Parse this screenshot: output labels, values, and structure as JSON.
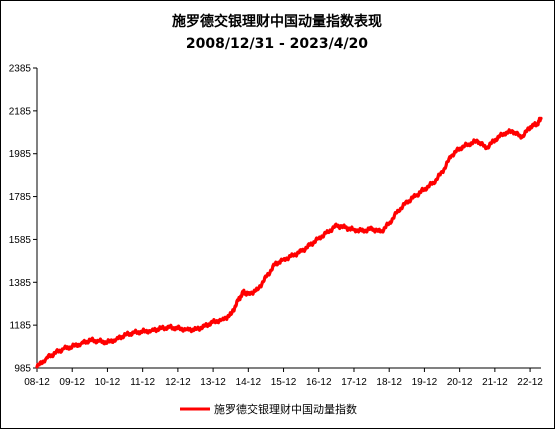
{
  "chart_data": {
    "type": "line",
    "title": "施罗德交银理财中国动量指数表现",
    "subtitle": "2008/12/31  -  2023/4/20",
    "xlabel": "",
    "ylabel": "",
    "x_tick_labels": [
      "08-12",
      "09-12",
      "10-12",
      "11-12",
      "12-12",
      "13-12",
      "14-12",
      "15-12",
      "16-12",
      "17-12",
      "18-12",
      "19-12",
      "20-12",
      "21-12",
      "22-12"
    ],
    "y_tick_labels": [
      "985",
      "1185",
      "1385",
      "1585",
      "1785",
      "1985",
      "2185",
      "2385"
    ],
    "ylim": [
      985,
      2385
    ],
    "xlim": [
      2008.99,
      2023.3
    ],
    "grid": false,
    "legend_position": "bottom",
    "line_color": "#ff0000",
    "series": [
      {
        "name": "施罗德交银理财中国动量指数",
        "x": [
          2008.99,
          2009.25,
          2009.5,
          2009.75,
          2009.99,
          2010.25,
          2010.5,
          2010.75,
          2010.99,
          2011.25,
          2011.5,
          2011.75,
          2011.99,
          2012.25,
          2012.5,
          2012.75,
          2012.99,
          2013.25,
          2013.5,
          2013.75,
          2013.99,
          2014.25,
          2014.5,
          2014.7,
          2014.85,
          2014.99,
          2015.25,
          2015.5,
          2015.75,
          2015.99,
          2016.25,
          2016.5,
          2016.75,
          2016.99,
          2017.25,
          2017.5,
          2017.75,
          2017.99,
          2018.25,
          2018.5,
          2018.75,
          2018.99,
          2019.25,
          2019.5,
          2019.75,
          2019.99,
          2020.25,
          2020.5,
          2020.75,
          2020.99,
          2021.25,
          2021.5,
          2021.75,
          2021.99,
          2022.25,
          2022.5,
          2022.75,
          2022.99,
          2023.2,
          2023.3
        ],
        "y": [
          990,
          1030,
          1055,
          1075,
          1085,
          1100,
          1115,
          1110,
          1105,
          1120,
          1140,
          1150,
          1155,
          1160,
          1170,
          1175,
          1170,
          1165,
          1165,
          1180,
          1200,
          1210,
          1235,
          1300,
          1340,
          1330,
          1350,
          1410,
          1470,
          1490,
          1510,
          1530,
          1560,
          1590,
          1620,
          1650,
          1640,
          1630,
          1625,
          1635,
          1620,
          1660,
          1720,
          1760,
          1790,
          1820,
          1850,
          1900,
          1975,
          2010,
          2030,
          2045,
          2010,
          2050,
          2080,
          2090,
          2060,
          2110,
          2125,
          2150
        ]
      }
    ]
  }
}
